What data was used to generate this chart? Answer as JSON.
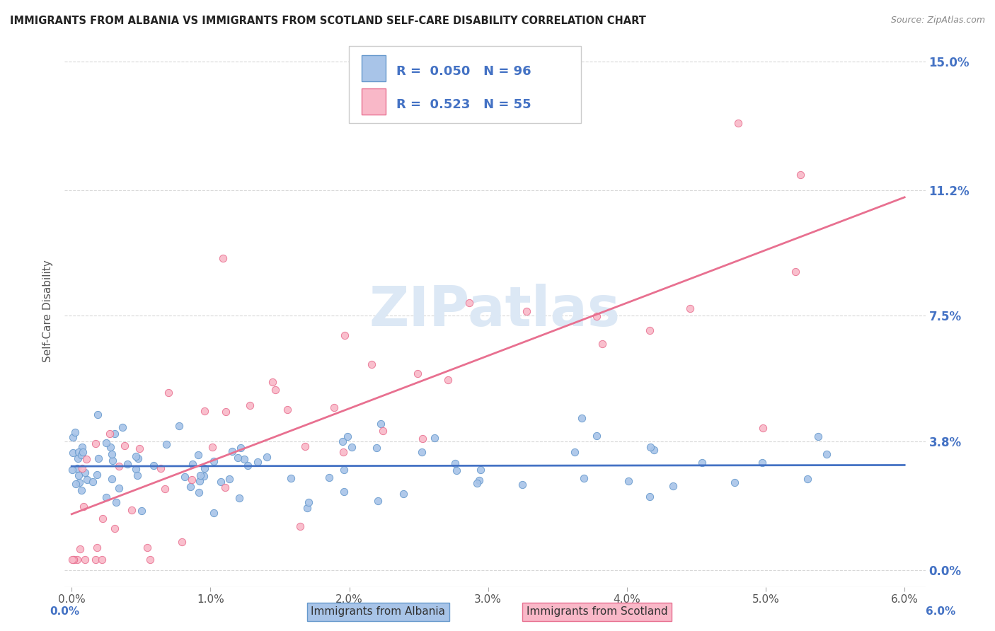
{
  "title": "IMMIGRANTS FROM ALBANIA VS IMMIGRANTS FROM SCOTLAND SELF-CARE DISABILITY CORRELATION CHART",
  "source": "Source: ZipAtlas.com",
  "xlim": [
    0.0,
    0.06
  ],
  "ylim": [
    0.0,
    0.15
  ],
  "ylabel": "Self-Care Disability",
  "albania_R": 0.05,
  "albania_N": 96,
  "scotland_R": 0.523,
  "scotland_N": 55,
  "albania_fill_color": "#a8c4e8",
  "albania_edge_color": "#6699cc",
  "scotland_fill_color": "#f9b8c8",
  "scotland_edge_color": "#e87090",
  "albania_trend_color": "#4472c4",
  "scotland_trend_color": "#e87090",
  "watermark_color": "#dce8f5",
  "background_color": "#ffffff",
  "grid_color": "#d8d8d8",
  "right_tick_color": "#4472c4",
  "title_color": "#222222",
  "source_color": "#888888",
  "legend_text_color": "#4472c4",
  "y_tick_vals": [
    0.0,
    0.038,
    0.075,
    0.112,
    0.15
  ],
  "y_tick_labels": [
    "0.0%",
    "3.8%",
    "7.5%",
    "11.2%",
    "15.0%"
  ],
  "x_tick_vals": [
    0.0,
    0.01,
    0.02,
    0.03,
    0.04,
    0.05,
    0.06
  ],
  "x_tick_labels": [
    "0.0%",
    "1.0%",
    "2.0%",
    "3.0%",
    "4.0%",
    "5.0%",
    "6.0%"
  ]
}
